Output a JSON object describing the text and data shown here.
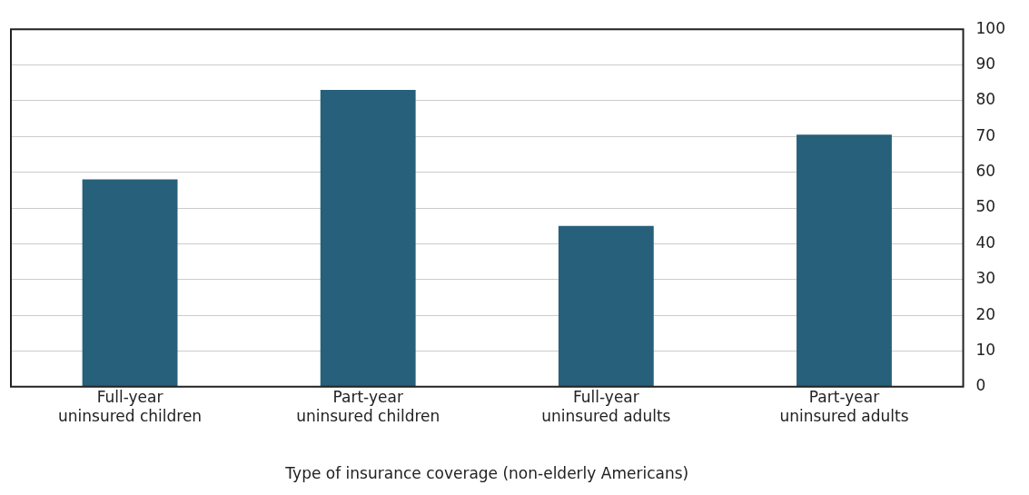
{
  "chart_data": {
    "type": "bar",
    "xlabel": "Type of insurance coverage (non-elderly Americans)",
    "categories": [
      "Full-year\nuninsured children",
      "Part-year\nuninsured children",
      "Full-year\nuninsured adults",
      "Part-year\nuninsured adults"
    ],
    "values": [
      58,
      83,
      45,
      70.5
    ],
    "color": "#27607a",
    "ylim": [
      0,
      100
    ],
    "yticks": [
      0,
      10,
      20,
      30,
      40,
      50,
      60,
      70,
      80,
      90,
      100
    ],
    "grid": "y"
  }
}
